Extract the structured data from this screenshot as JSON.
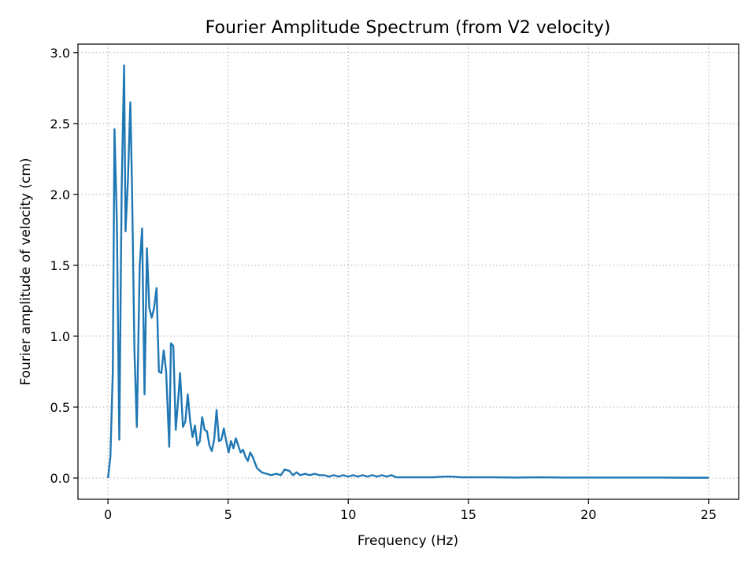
{
  "chart_data": {
    "type": "line",
    "title": "Fourier Amplitude Spectrum (from V2 velocity)",
    "xlabel": "Frequency (Hz)",
    "ylabel": "Fourier amplitude of velocity (cm)",
    "xlim": [
      -1.25,
      26.25
    ],
    "ylim": [
      -0.15,
      3.06
    ],
    "xticks": [
      0,
      5,
      10,
      15,
      20,
      25
    ],
    "xtick_labels": [
      "0",
      "5",
      "10",
      "15",
      "20",
      "25"
    ],
    "yticks": [
      0.0,
      0.5,
      1.0,
      1.5,
      2.0,
      2.5,
      3.0
    ],
    "ytick_labels": [
      "0.0",
      "0.5",
      "1.0",
      "1.5",
      "2.0",
      "2.5",
      "3.0"
    ],
    "grid": true,
    "color": "#1f77b4",
    "series": [
      {
        "x": [
          0.0,
          0.1,
          0.2,
          0.27,
          0.37,
          0.47,
          0.57,
          0.67,
          0.73,
          0.83,
          0.93,
          1.0,
          1.1,
          1.2,
          1.32,
          1.42,
          1.52,
          1.62,
          1.72,
          1.82,
          1.92,
          2.02,
          2.12,
          2.22,
          2.32,
          2.42,
          2.55,
          2.62,
          2.72,
          2.82,
          2.92,
          3.0,
          3.12,
          3.22,
          3.32,
          3.42,
          3.52,
          3.62,
          3.72,
          3.82,
          3.92,
          4.02,
          4.12,
          4.22,
          4.32,
          4.42,
          4.52,
          4.62,
          4.72,
          4.82,
          4.92,
          5.02,
          5.12,
          5.22,
          5.32,
          5.42,
          5.52,
          5.62,
          5.72,
          5.82,
          5.92,
          6.02,
          6.2,
          6.4,
          6.6,
          6.8,
          7.0,
          7.2,
          7.35,
          7.55,
          7.7,
          7.85,
          8.0,
          8.2,
          8.4,
          8.6,
          8.8,
          9.0,
          9.2,
          9.4,
          9.6,
          9.8,
          10.0,
          10.2,
          10.4,
          10.6,
          10.8,
          11.0,
          11.2,
          11.4,
          11.6,
          11.8,
          12.0,
          12.5,
          13.0,
          13.5,
          14.0,
          14.3,
          14.7,
          15.0,
          16.0,
          17.0,
          18.0,
          19.0,
          20.0,
          21.0,
          22.0,
          23.0,
          24.0,
          25.0
        ],
        "y": [
          0.0,
          0.15,
          0.75,
          2.46,
          1.8,
          0.27,
          2.05,
          2.91,
          1.74,
          2.1,
          2.65,
          2.05,
          0.9,
          0.36,
          1.5,
          1.76,
          0.59,
          1.62,
          1.2,
          1.13,
          1.2,
          1.34,
          0.75,
          0.74,
          0.9,
          0.75,
          0.22,
          0.95,
          0.93,
          0.34,
          0.55,
          0.74,
          0.36,
          0.4,
          0.59,
          0.4,
          0.29,
          0.37,
          0.23,
          0.26,
          0.43,
          0.34,
          0.33,
          0.23,
          0.19,
          0.27,
          0.48,
          0.26,
          0.27,
          0.35,
          0.26,
          0.18,
          0.26,
          0.21,
          0.28,
          0.23,
          0.18,
          0.2,
          0.15,
          0.12,
          0.18,
          0.15,
          0.07,
          0.04,
          0.03,
          0.02,
          0.03,
          0.02,
          0.06,
          0.05,
          0.02,
          0.04,
          0.02,
          0.03,
          0.02,
          0.03,
          0.02,
          0.02,
          0.01,
          0.02,
          0.01,
          0.02,
          0.01,
          0.02,
          0.01,
          0.02,
          0.01,
          0.02,
          0.01,
          0.02,
          0.01,
          0.02,
          0.005,
          0.005,
          0.005,
          0.005,
          0.01,
          0.01,
          0.005,
          0.005,
          0.005,
          0.003,
          0.005,
          0.003,
          0.003,
          0.003,
          0.003,
          0.003,
          0.002,
          0.002
        ]
      }
    ]
  }
}
